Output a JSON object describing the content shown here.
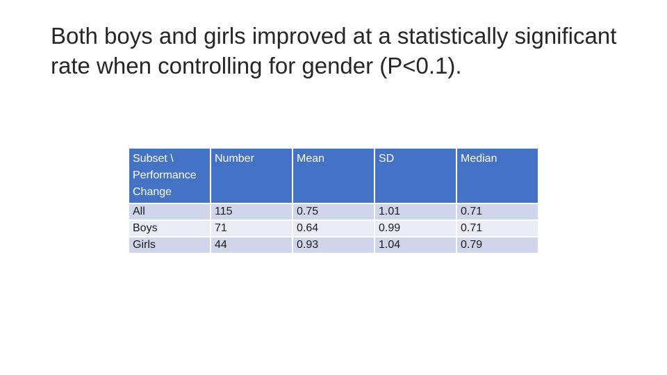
{
  "slide": {
    "title": "Both boys and girls improved at a statistically significant rate when controlling for gender (P<0.1)."
  },
  "table": {
    "headers": [
      "Subset \\ Performance Change",
      "Number",
      "Mean",
      "SD",
      "Median"
    ],
    "rows": [
      [
        "All",
        "115",
        "0.75",
        "1.01",
        "0.71"
      ],
      [
        "Boys",
        "71",
        "0.64",
        "0.99",
        "0.71"
      ],
      [
        "Girls",
        "44",
        "0.93",
        "1.04",
        "0.79"
      ]
    ]
  },
  "colors": {
    "header_bg": "#4472c4",
    "row_odd_bg": "#cfd5ea",
    "row_even_bg": "#e9ebf5",
    "title_text": "#262626"
  }
}
